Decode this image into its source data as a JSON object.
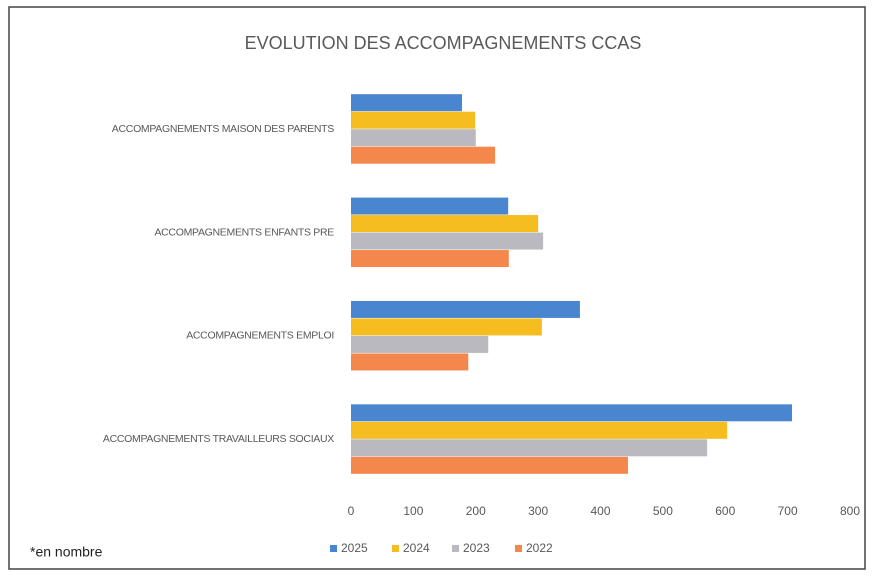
{
  "chart_data": {
    "type": "hbar",
    "title": "EVOLUTION DES ACCOMPAGNEMENTS CCAS",
    "note": "*en nombre",
    "categories": [
      "ACCOMPAGNEMENTS MAISON DES PARENTS",
      "ACCOMPAGNEMENTS ENFANTS PRE",
      "ACCOMPAGNEMENTS EMPLOI",
      "ACCOMPAGNEMENTS  TRAVAILLEURS SOCIAUX"
    ],
    "series": [
      {
        "name": "2025",
        "color": "#4a86d0",
        "values": [
          178,
          252,
          367,
          707
        ]
      },
      {
        "name": "2024",
        "color": "#f5bd1f",
        "values": [
          199,
          300,
          306,
          603
        ]
      },
      {
        "name": "2023",
        "color": "#b9b9bf",
        "values": [
          200,
          308,
          220,
          571
        ]
      },
      {
        "name": "2022",
        "color": "#f4874b",
        "values": [
          231,
          253,
          188,
          444
        ]
      }
    ],
    "xlim": [
      0,
      800
    ],
    "xticks": [
      0,
      100,
      200,
      300,
      400,
      500,
      600,
      700,
      800
    ],
    "grid": false,
    "legend": "bottom"
  }
}
